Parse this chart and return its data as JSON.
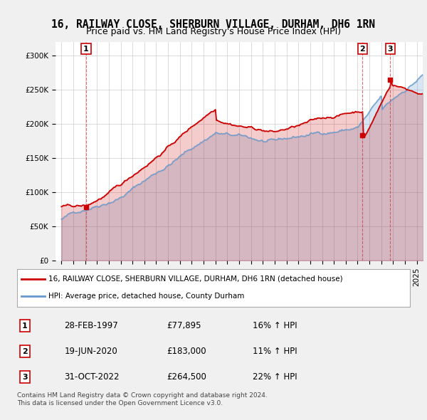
{
  "title": "16, RAILWAY CLOSE, SHERBURN VILLAGE, DURHAM, DH6 1RN",
  "subtitle": "Price paid vs. HM Land Registry's House Price Index (HPI)",
  "sale_dates": [
    "1997-02-28",
    "2020-06-19",
    "2022-10-31"
  ],
  "sale_prices": [
    77895,
    183000,
    264500
  ],
  "sale_labels": [
    "1",
    "2",
    "3"
  ],
  "sale_info": [
    {
      "num": "1",
      "date": "28-FEB-1997",
      "price": "£77,895",
      "hpi": "16% ↑ HPI"
    },
    {
      "num": "2",
      "date": "19-JUN-2020",
      "price": "£183,000",
      "hpi": "11% ↑ HPI"
    },
    {
      "num": "3",
      "date": "31-OCT-2022",
      "price": "£264,500",
      "hpi": "22% ↑ HPI"
    }
  ],
  "legend_line1": "16, RAILWAY CLOSE, SHERBURN VILLAGE, DURHAM, DH6 1RN (detached house)",
  "legend_line2": "HPI: Average price, detached house, County Durham",
  "footer1": "Contains HM Land Registry data © Crown copyright and database right 2024.",
  "footer2": "This data is licensed under the Open Government Licence v3.0.",
  "price_color": "#cc0000",
  "hpi_color": "#6699cc",
  "background_color": "#f0f0f0",
  "plot_bg_color": "#ffffff",
  "ylim": [
    0,
    320000
  ],
  "yticks": [
    0,
    50000,
    100000,
    150000,
    200000,
    250000,
    300000
  ],
  "xlim_start": 1994.5,
  "xlim_end": 2025.5
}
